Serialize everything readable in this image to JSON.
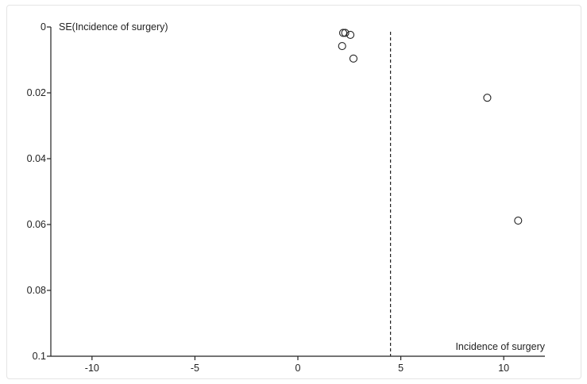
{
  "chart_data": {
    "type": "scatter",
    "title": "",
    "xlabel": "Incidence of surgery",
    "ylabel": "SE(Incidence of surgery)",
    "xlim": [
      -12,
      12
    ],
    "ylim": [
      0,
      0.1
    ],
    "y_inverted": true,
    "x_ticks": [
      -10,
      -5,
      0,
      5,
      10
    ],
    "y_ticks": [
      0,
      0.02,
      0.04,
      0.06,
      0.08,
      0.1
    ],
    "x_tick_labels": [
      "-10",
      "-5",
      "0",
      "5",
      "10"
    ],
    "y_tick_labels": [
      "0",
      "0.02",
      "0.04",
      "0.06",
      "0.08",
      "0.1"
    ],
    "reference_line": {
      "x": 4.5,
      "style": "dashed"
    },
    "points": [
      {
        "x": 2.2,
        "y": 0.0018
      },
      {
        "x": 2.3,
        "y": 0.0018
      },
      {
        "x": 2.55,
        "y": 0.0024
      },
      {
        "x": 2.15,
        "y": 0.0058
      },
      {
        "x": 2.7,
        "y": 0.0096
      },
      {
        "x": 9.2,
        "y": 0.0215
      },
      {
        "x": 10.7,
        "y": 0.0588
      }
    ],
    "marker": "open-circle",
    "grid": false,
    "legend": "none",
    "colors": {
      "axis": "#222222",
      "marker": "#222222",
      "background": "#ffffff"
    }
  }
}
